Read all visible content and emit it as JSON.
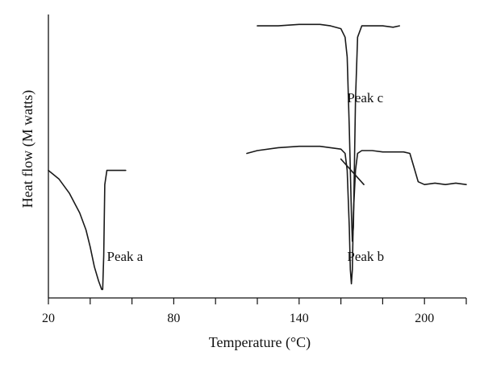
{
  "chart_data": {
    "type": "line",
    "title": "",
    "xlabel": "Temperature (°C)",
    "ylabel": "Heat flow (M watts)",
    "xlim": [
      20,
      220
    ],
    "x_ticks": [
      20,
      80,
      140,
      200
    ],
    "x_tick_labels": [
      "20",
      "80",
      "140",
      "200"
    ],
    "minor_tick_step": 20,
    "y_ticks_labeled": false,
    "ylim": [
      0,
      100
    ],
    "grid": false,
    "legend": "none",
    "series": [
      {
        "label": "Peak a",
        "x": [
          20,
          25,
          30,
          35,
          38,
          40,
          42,
          44,
          45.5,
          46,
          46.5,
          47,
          48,
          50,
          55,
          57
        ],
        "y": [
          45,
          42,
          37,
          30,
          24,
          18,
          11,
          6,
          3,
          3,
          15,
          40,
          45,
          45,
          45,
          45
        ]
      },
      {
        "label": "Peak c",
        "x": [
          120,
          130,
          140,
          150,
          155,
          160,
          162,
          163,
          164,
          165,
          165.5,
          166,
          167,
          168,
          170,
          175,
          180,
          185,
          188
        ],
        "y": [
          96,
          96,
          96.5,
          96.5,
          96,
          95,
          92,
          85,
          60,
          30,
          20,
          25,
          70,
          92,
          96,
          96,
          96,
          95.5,
          96
        ]
      },
      {
        "label": "Peak b",
        "x": [
          115,
          120,
          130,
          140,
          150,
          155,
          160,
          162,
          163,
          164,
          164.5,
          165,
          165.5,
          166,
          167,
          168,
          170,
          175,
          180,
          185,
          190,
          193,
          195,
          197,
          200,
          205,
          210,
          215,
          220
        ],
        "y": [
          51,
          52,
          53,
          53.5,
          53.5,
          53,
          52.5,
          51,
          45,
          25,
          10,
          5,
          10,
          30,
          45,
          51,
          52,
          52,
          51.5,
          51.5,
          51.5,
          51,
          46,
          41,
          40,
          40.5,
          40,
          40.5,
          40
        ]
      }
    ],
    "annotations": [
      {
        "text": "Peak a",
        "x": 48,
        "y": 13
      },
      {
        "text": "Peak b",
        "x": 163,
        "y": 13
      },
      {
        "text": "Peak c",
        "x": 163,
        "y": 69
      }
    ],
    "extra_lines": [
      {
        "x": [
          160,
          171
        ],
        "y": [
          49,
          40
        ]
      }
    ]
  }
}
